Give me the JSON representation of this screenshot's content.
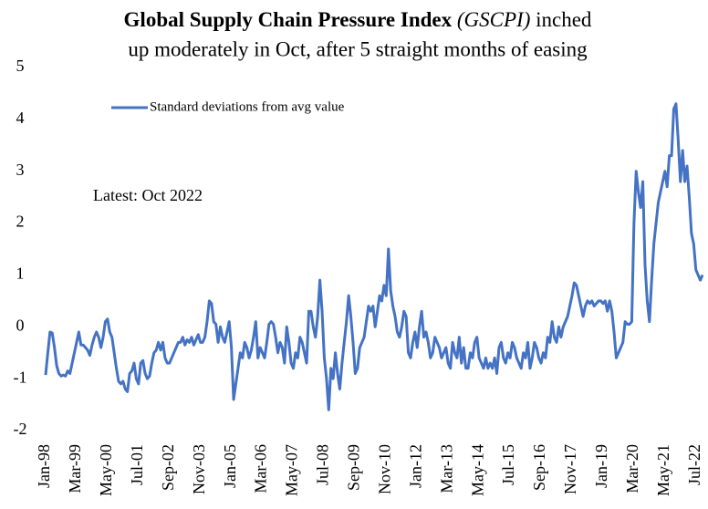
{
  "chart_data": {
    "type": "line",
    "title": {
      "bold": "Global Supply Chain Pressure Index",
      "italic": "(GSCPI)",
      "rest": "inched",
      "line2": "up moderately in Oct, after 5 straight months of easing"
    },
    "annotation": "Latest: Oct 2022",
    "categories": [
      "Jan-98",
      null,
      null,
      null,
      null,
      null,
      null,
      null,
      null,
      null,
      null,
      null,
      null,
      null,
      "Mar-99",
      null,
      null,
      null,
      null,
      null,
      null,
      null,
      null,
      null,
      null,
      null,
      null,
      null,
      "May-00",
      null,
      null,
      null,
      null,
      null,
      null,
      null,
      null,
      null,
      null,
      null,
      null,
      null,
      "Jul-01",
      null,
      null,
      null,
      null,
      null,
      null,
      null,
      null,
      null,
      null,
      null,
      null,
      null,
      "Sep-02",
      null,
      null,
      null,
      null,
      null,
      null,
      null,
      null,
      null,
      null,
      null,
      null,
      null,
      "Nov-03",
      null,
      null,
      null,
      null,
      null,
      null,
      null,
      null,
      null,
      null,
      null,
      null,
      null,
      "Jan-05",
      null,
      null,
      null,
      null,
      null,
      null,
      null,
      null,
      null,
      null,
      null,
      null,
      null,
      "Mar-06",
      null,
      null,
      null,
      null,
      null,
      null,
      null,
      null,
      null,
      null,
      null,
      null,
      null,
      "May-07",
      null,
      null,
      null,
      null,
      null,
      null,
      null,
      null,
      null,
      null,
      null,
      null,
      null,
      "Jul-08",
      null,
      null,
      null,
      null,
      null,
      null,
      null,
      null,
      null,
      null,
      null,
      null,
      null,
      "Sep-09",
      null,
      null,
      null,
      null,
      null,
      null,
      null,
      null,
      null,
      null,
      null,
      null,
      null,
      "Nov-10",
      null,
      null,
      null,
      null,
      null,
      null,
      null,
      null,
      null,
      null,
      null,
      null,
      null,
      "Jan-12",
      null,
      null,
      null,
      null,
      null,
      null,
      null,
      null,
      null,
      null,
      null,
      null,
      null,
      "Mar-13",
      null,
      null,
      null,
      null,
      null,
      null,
      null,
      null,
      null,
      null,
      null,
      null,
      null,
      "May-14",
      null,
      null,
      null,
      null,
      null,
      null,
      null,
      null,
      null,
      null,
      null,
      null,
      null,
      "Jul-15",
      null,
      null,
      null,
      null,
      null,
      null,
      null,
      null,
      null,
      null,
      null,
      null,
      null,
      "Sep-16",
      null,
      null,
      null,
      null,
      null,
      null,
      null,
      null,
      null,
      null,
      null,
      null,
      null,
      "Nov-17",
      null,
      null,
      null,
      null,
      null,
      null,
      null,
      null,
      null,
      null,
      null,
      null,
      null,
      "Jan-19",
      null,
      null,
      null,
      null,
      null,
      null,
      null,
      null,
      null,
      null,
      null,
      null,
      null,
      "Mar-20",
      null,
      null,
      null,
      null,
      null,
      null,
      null,
      null,
      null,
      null,
      null,
      null,
      null,
      "May-21",
      null,
      null,
      null,
      null,
      null,
      null,
      null,
      null,
      null,
      null,
      null,
      null,
      null,
      "Jul-22",
      null,
      null,
      null
    ],
    "series": [
      {
        "name": "Standard deviations from avg value",
        "color": "#4472c4",
        "values": [
          -0.93,
          -0.5,
          -0.1,
          -0.12,
          -0.4,
          -0.75,
          -0.9,
          -0.95,
          -0.93,
          -0.95,
          -0.85,
          -0.9,
          -0.7,
          -0.5,
          -0.3,
          -0.1,
          -0.35,
          -0.35,
          -0.4,
          -0.45,
          -0.55,
          -0.35,
          -0.2,
          -0.1,
          -0.2,
          -0.4,
          -0.2,
          0.1,
          0.15,
          -0.1,
          -0.2,
          -0.5,
          -0.8,
          -1.05,
          -1.1,
          -1.05,
          -1.2,
          -1.25,
          -0.9,
          -0.85,
          -0.7,
          -1.0,
          -1.1,
          -0.7,
          -0.65,
          -0.9,
          -1.0,
          -0.95,
          -0.7,
          -0.5,
          -0.45,
          -0.3,
          -0.45,
          -0.3,
          -0.6,
          -0.7,
          -0.7,
          -0.6,
          -0.5,
          -0.4,
          -0.3,
          -0.3,
          -0.2,
          -0.35,
          -0.25,
          -0.3,
          -0.2,
          -0.35,
          -0.25,
          -0.15,
          -0.3,
          -0.3,
          -0.2,
          0.1,
          0.5,
          0.45,
          0.1,
          0.05,
          -0.3,
          0.0,
          -0.2,
          -0.3,
          -0.1,
          0.1,
          -0.4,
          -1.4,
          -1.1,
          -0.8,
          -0.5,
          -0.6,
          -0.3,
          -0.4,
          -0.6,
          -0.45,
          -0.2,
          0.1,
          -0.6,
          -0.4,
          -0.5,
          -0.6,
          -0.3,
          0.05,
          0.1,
          0.05,
          -0.2,
          -0.5,
          -0.3,
          -0.4,
          -0.7,
          0.0,
          -0.3,
          -0.7,
          -0.8,
          -0.5,
          -0.6,
          -0.2,
          -0.3,
          -0.5,
          -0.7,
          0.3,
          0.3,
          0.0,
          -0.2,
          0.2,
          0.9,
          0.3,
          -0.6,
          -1.0,
          -1.6,
          -0.8,
          -1.0,
          -0.5,
          -0.9,
          -1.2,
          -0.7,
          -0.3,
          0.1,
          0.6,
          0.2,
          -0.3,
          -0.9,
          -0.8,
          -0.4,
          -0.3,
          -0.2,
          0.1,
          0.4,
          0.3,
          0.4,
          0.0,
          0.3,
          0.6,
          0.5,
          0.8,
          0.6,
          1.5,
          0.7,
          0.4,
          0.2,
          -0.1,
          -0.2,
          0.0,
          0.3,
          0.2,
          -0.5,
          -0.6,
          -0.3,
          -0.1,
          -0.4,
          0.0,
          0.3,
          -0.2,
          -0.1,
          -0.3,
          -0.6,
          -0.5,
          -0.2,
          -0.3,
          -0.4,
          -0.6,
          -0.5,
          -0.4,
          -0.7,
          -0.8,
          -0.3,
          -0.5,
          -0.6,
          -0.2,
          -0.7,
          -0.4,
          -0.8,
          -0.8,
          -0.5,
          -0.6,
          -0.3,
          -0.2,
          -0.6,
          -0.7,
          -0.8,
          -0.6,
          -0.8,
          -0.7,
          -0.8,
          -0.6,
          -0.9,
          -0.4,
          -0.3,
          -0.6,
          -0.7,
          -0.5,
          -0.6,
          -0.3,
          -0.4,
          -0.6,
          -0.7,
          -0.8,
          -0.5,
          -0.6,
          -0.3,
          -0.8,
          -0.6,
          -0.3,
          -0.4,
          -0.6,
          -0.7,
          -0.5,
          -0.6,
          -0.2,
          -0.3,
          0.1,
          -0.2,
          -0.3,
          0.0,
          -0.2,
          0.0,
          0.1,
          0.2,
          0.4,
          0.6,
          0.85,
          0.8,
          0.6,
          0.4,
          0.2,
          0.4,
          0.5,
          0.45,
          0.5,
          0.4,
          0.45,
          0.5,
          0.5,
          0.45,
          0.5,
          0.3,
          0.5,
          0.3,
          -0.1,
          -0.6,
          -0.5,
          -0.4,
          -0.3,
          0.1,
          0.05,
          0.05,
          0.1,
          2.0,
          3.0,
          2.6,
          2.3,
          2.8,
          1.2,
          0.5,
          0.1,
          0.9,
          1.6,
          2.0,
          2.4,
          2.6,
          2.8,
          3.0,
          2.7,
          3.3,
          3.3,
          4.2,
          4.3,
          3.6,
          2.8,
          3.4,
          2.8,
          3.1,
          2.5,
          1.8,
          1.6,
          1.1,
          1.0,
          0.9,
          1.0
        ]
      }
    ],
    "ylim": [
      -2,
      5
    ],
    "yticks": [
      -2,
      -1,
      0,
      1,
      2,
      3,
      4,
      5
    ],
    "grid": false,
    "legend": "top-left"
  }
}
